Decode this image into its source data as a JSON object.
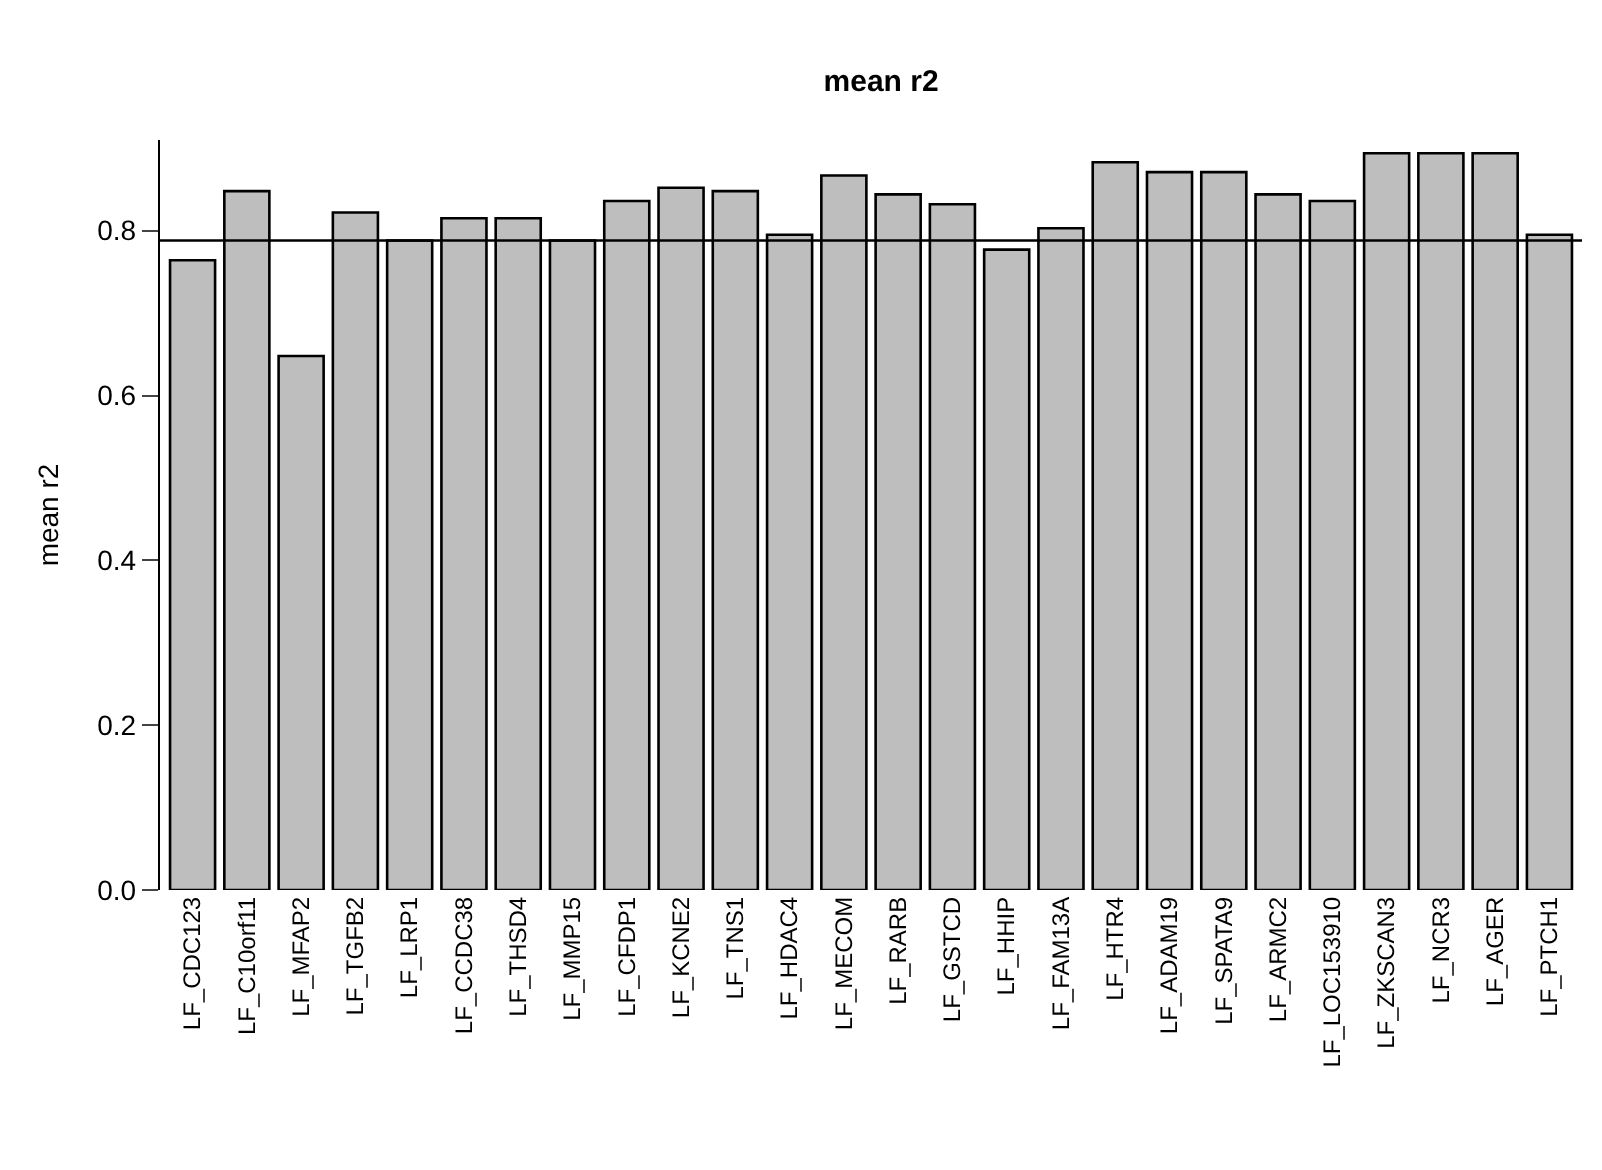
{
  "chart_data": {
    "type": "bar",
    "title": "mean r2",
    "ylabel": "mean r2",
    "categories": [
      "LF_CDC123",
      "LF_C10orf11",
      "LF_MFAP2",
      "LF_TGFB2",
      "LF_LRP1",
      "LF_CCDC38",
      "LF_THSD4",
      "LF_MMP15",
      "LF_CFDP1",
      "LF_KCNE2",
      "LF_TNS1",
      "LF_HDAC4",
      "LF_MECOM",
      "LF_RARB",
      "LF_GSTCD",
      "LF_HHIP",
      "LF_FAM13A",
      "LF_HTR4",
      "LF_ADAM19",
      "LF_SPATA9",
      "LF_ARMC2",
      "LF_LOC153910",
      "LF_ZKSCAN3",
      "LF_NCR3",
      "LF_AGER",
      "LF_PTCH1"
    ],
    "values": [
      0.764,
      0.848,
      0.648,
      0.822,
      0.788,
      0.815,
      0.815,
      0.788,
      0.836,
      0.852,
      0.848,
      0.795,
      0.867,
      0.844,
      0.832,
      0.777,
      0.803,
      0.883,
      0.871,
      0.871,
      0.844,
      0.836,
      0.894,
      0.894,
      0.894,
      0.795
    ],
    "color": "#bebebe",
    "ylim": [
      0,
      0.91
    ],
    "yticks": [
      {
        "value": 0,
        "label": "0.0"
      },
      0.2,
      0.4,
      0.6,
      0.8
    ],
    "ref_lines": [
      {
        "axis": "y",
        "value": 0.788,
        "color": "#000000"
      }
    ]
  }
}
